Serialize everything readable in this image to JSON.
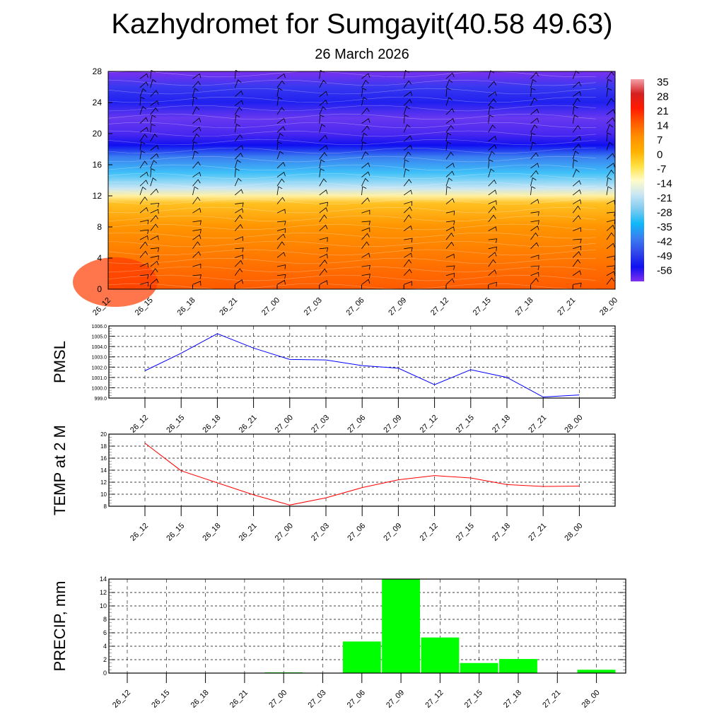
{
  "title": "Kazhydromet for Sumgayit(40.58 49.63)",
  "subtitle": "26 March 2026",
  "chart_data": [
    {
      "type": "heatmap",
      "name": "vertical cross-section temperature with wind barbs",
      "x_categories": [
        "26_12",
        "26_15",
        "26_18",
        "26_21",
        "27_00",
        "27_03",
        "27_06",
        "27_09",
        "27_12",
        "27_15",
        "27_18",
        "27_21",
        "28_00"
      ],
      "y_ticks": [
        0,
        4,
        8,
        12,
        16,
        20,
        24,
        28
      ],
      "ylim": [
        0,
        28
      ],
      "colorbar": {
        "labels": [
          "35",
          "28",
          "21",
          "14",
          "7",
          "0",
          "-7",
          "-14",
          "-21",
          "-28",
          "-35",
          "-42",
          "-49",
          "-56"
        ],
        "colors": [
          "#f4a0a8",
          "#d42020",
          "#ff1a00",
          "#ff5a00",
          "#ff9000",
          "#ffb000",
          "#ffe040",
          "#fffcc8",
          "#c8e6f4",
          "#7ecbf0",
          "#10b8f8",
          "#3a7ef0",
          "#3048e8",
          "#1010f0",
          "#8030f0"
        ]
      },
      "profile_levels": [
        0,
        4,
        8,
        11,
        12,
        13,
        15,
        17,
        18.5,
        20,
        22,
        24,
        26,
        28
      ],
      "profile_colors": [
        "#ff5a00",
        "#ff7800",
        "#ff9400",
        "#ffc020",
        "#fff0a0",
        "#c8e6f4",
        "#3ec0f8",
        "#3a7ef0",
        "#1010f0",
        "#4a28f0",
        "#6838f0",
        "#2020f0",
        "#3838f0",
        "#7a30f0"
      ]
    },
    {
      "type": "line",
      "ylabel": "PMSL",
      "x": [
        "26_12",
        "26_15",
        "26_18",
        "26_21",
        "27_00",
        "27_03",
        "27_06",
        "27_09",
        "27_12",
        "27_15",
        "27_18",
        "27_21",
        "28_00"
      ],
      "values": [
        1001.65,
        1003.35,
        1005.25,
        1003.85,
        1002.75,
        1002.7,
        1002.15,
        1001.9,
        1000.3,
        1001.75,
        1001.0,
        999.1,
        999.3
      ],
      "ylim": [
        999,
        1006
      ],
      "y_ticks": [
        "999.0",
        "1000.0",
        "1001.0",
        "1002.0",
        "1003.0",
        "1004.0",
        "1005.0",
        "1006.0"
      ],
      "color": "#0000ff",
      "grid": true
    },
    {
      "type": "line",
      "ylabel": "TEMP at 2 M",
      "x": [
        "26_12",
        "26_15",
        "26_18",
        "26_21",
        "27_00",
        "27_03",
        "27_06",
        "27_09",
        "27_12",
        "27_15",
        "27_18",
        "27_21",
        "28_00"
      ],
      "values": [
        18.5,
        13.9,
        11.9,
        9.9,
        8.2,
        9.4,
        11.1,
        12.4,
        13.1,
        12.7,
        11.6,
        11.3,
        11.35
      ],
      "ylim": [
        8,
        20
      ],
      "y_ticks": [
        "8",
        "10",
        "12",
        "14",
        "16",
        "18",
        "20"
      ],
      "color": "#ff0000",
      "grid": true
    },
    {
      "type": "bar",
      "ylabel": "PRECIP, mm",
      "categories": [
        "26_12",
        "26_15",
        "26_18",
        "26_21",
        "27_00",
        "27_03",
        "27_06",
        "27_09",
        "27_12",
        "27_15",
        "27_18",
        "27_21",
        "28_00"
      ],
      "values": [
        0,
        0,
        0,
        0,
        0.1,
        0.05,
        4.7,
        14,
        5.3,
        1.5,
        2.1,
        0,
        0.5
      ],
      "ylim": [
        0,
        14
      ],
      "y_ticks": [
        "0",
        "2",
        "4",
        "6",
        "8",
        "10",
        "12",
        "14"
      ],
      "color": "#00ff00",
      "grid": true
    }
  ]
}
